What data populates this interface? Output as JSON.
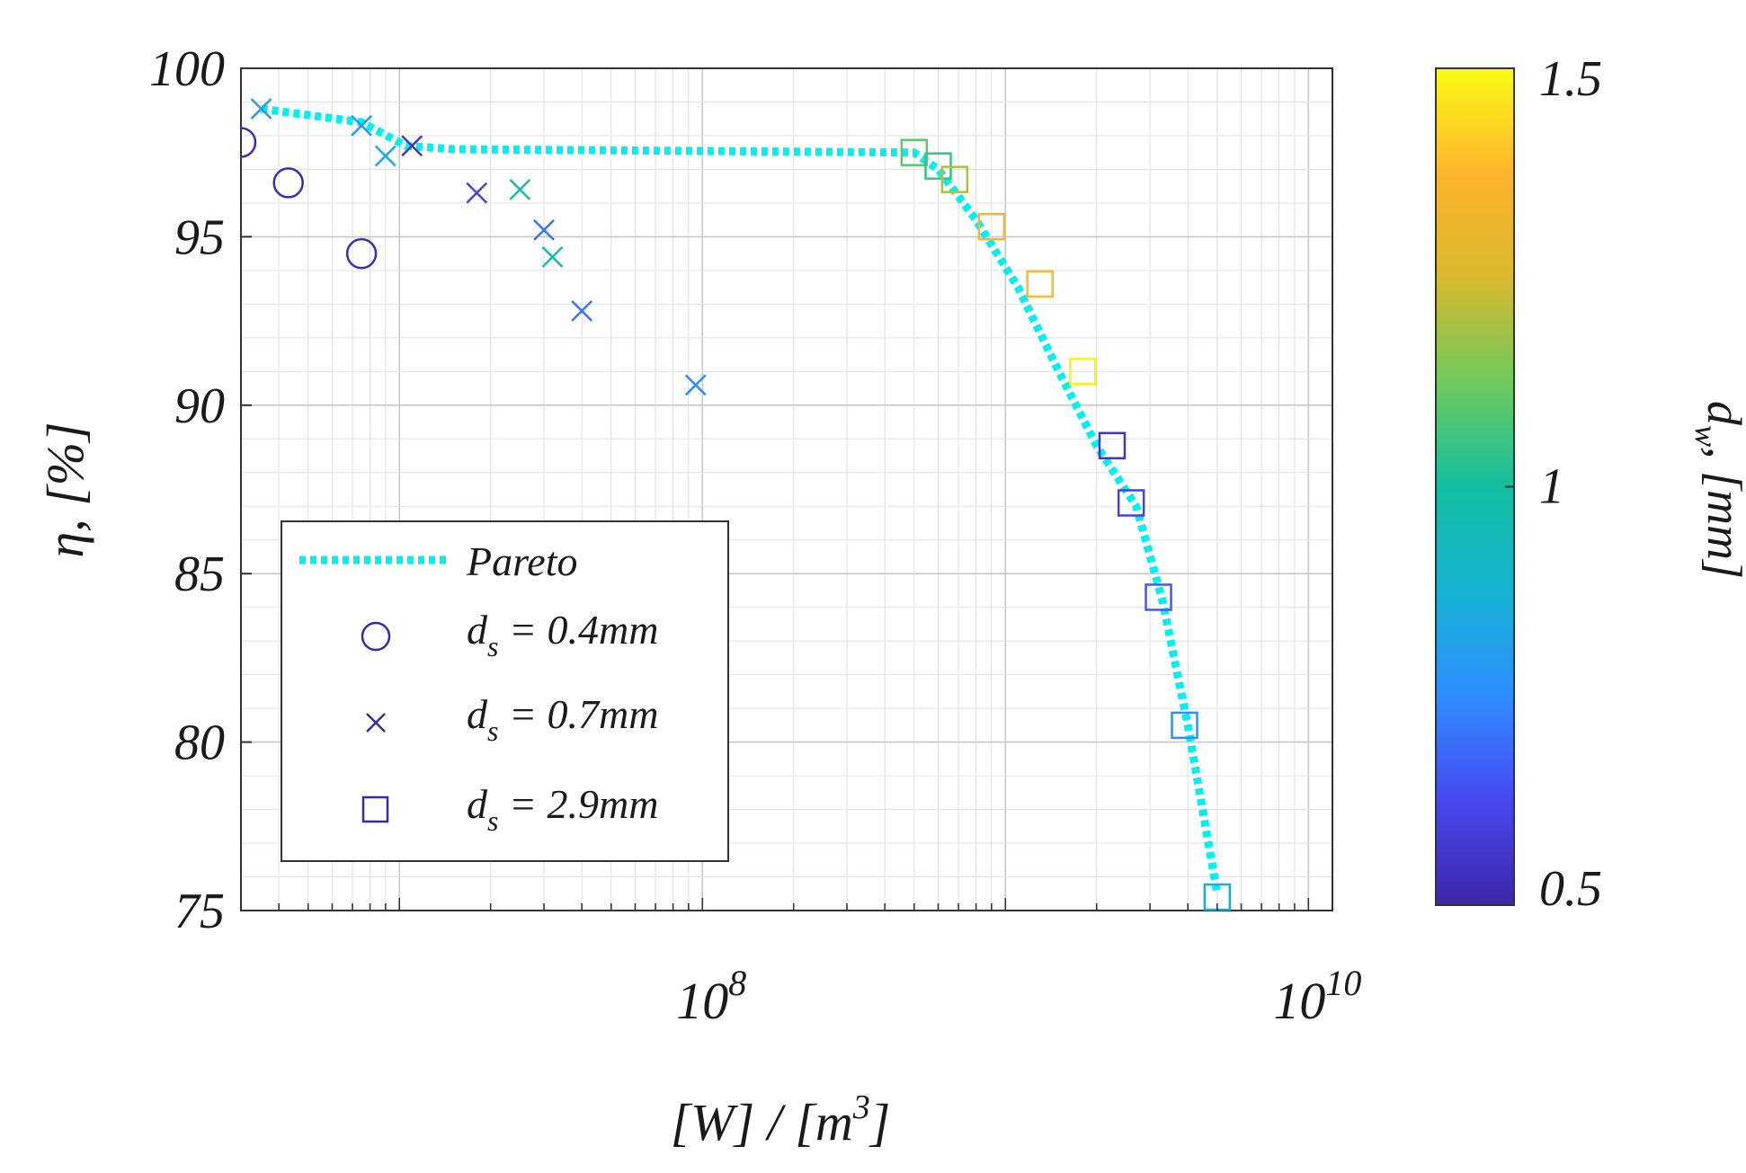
{
  "chart_data": {
    "type": "scatter",
    "title": "",
    "xlabel": "[W] / [m",
    "xlabel_sup": "3",
    "xlabel_close": "]",
    "ylabel": "η, [%]",
    "x_scale": "log",
    "xlim": [
      3000000,
      12000000000
    ],
    "ylim": [
      75,
      100
    ],
    "x_ticks": [
      {
        "value": 100000000,
        "base": "10",
        "exp": "8"
      },
      {
        "value": 10000000000,
        "base": "10",
        "exp": "10"
      }
    ],
    "y_ticks": [
      {
        "value": 75,
        "label": "75"
      },
      {
        "value": 80,
        "label": "80"
      },
      {
        "value": 85,
        "label": "85"
      },
      {
        "value": 90,
        "label": "90"
      },
      {
        "value": 95,
        "label": "95"
      },
      {
        "value": 100,
        "label": "100"
      }
    ],
    "grid": true,
    "colorbar": {
      "label": "d",
      "label_sub": "w",
      "label_rest": ", [mm]",
      "range": [
        0.5,
        1.5
      ],
      "ticks": [
        {
          "value": 0.5,
          "label": "0.5"
        },
        {
          "value": 1.0,
          "label": "1"
        },
        {
          "value": 1.5,
          "label": "1.5"
        }
      ],
      "colormap": "parula",
      "colormap_stops": [
        "#3e26a8",
        "#4748f0",
        "#2f8eff",
        "#15b2d3",
        "#12bfa0",
        "#6fca5d",
        "#d9b92d",
        "#feb42c",
        "#f9fb15"
      ]
    },
    "legend": {
      "placement": "bottom-left",
      "entries": [
        {
          "label": "Pareto",
          "marker": "line",
          "color": "#00f0f0"
        },
        {
          "label": "d",
          "sub": "s",
          "rest": " = 0.4mm",
          "marker": "circle",
          "color": "#3e26a8"
        },
        {
          "label": "d",
          "sub": "s",
          "rest": " = 0.7mm",
          "marker": "x",
          "color": "#3e26a8"
        },
        {
          "label": "d",
          "sub": "s",
          "rest": " = 2.9mm",
          "marker": "square",
          "color": "#3e26a8"
        }
      ]
    },
    "pareto": {
      "name": "Pareto",
      "color": "#00f0f0",
      "x": [
        3500000,
        7500000,
        10500000,
        15000000,
        500000000,
        600000000,
        800000000,
        1100000000,
        1500000000,
        2000000000,
        2700000000,
        3300000000,
        4000000000,
        5000000000
      ],
      "y": [
        98.8,
        98.4,
        97.7,
        97.6,
        97.5,
        97.0,
        95.5,
        93.5,
        91.0,
        88.8,
        87.0,
        84.2,
        80.5,
        75.5
      ]
    },
    "series": [
      {
        "name": "ds = 0.4mm",
        "marker": "circle",
        "x": [
          3000000,
          4300000,
          7500000
        ],
        "y": [
          97.8,
          96.6,
          94.5
        ],
        "dw": [
          0.52,
          0.52,
          0.52
        ]
      },
      {
        "name": "ds = 0.7mm",
        "marker": "x",
        "x": [
          3500000,
          7500000,
          9000000,
          11000000,
          18000000,
          25000000,
          30000000,
          32000000,
          40000000,
          95000000
        ],
        "y": [
          98.8,
          98.3,
          97.4,
          97.7,
          96.3,
          96.4,
          95.2,
          94.4,
          92.8,
          90.6
        ],
        "dw": [
          0.8,
          0.78,
          0.85,
          0.55,
          0.6,
          0.95,
          0.7,
          1.0,
          0.7,
          0.75
        ]
      },
      {
        "name": "ds = 2.9mm",
        "marker": "square",
        "x": [
          500000000,
          600000000,
          680000000,
          900000000,
          1300000000,
          1800000000,
          2250000000,
          2600000000,
          3200000000,
          3900000000,
          5000000000
        ],
        "y": [
          97.5,
          97.1,
          96.7,
          95.3,
          93.6,
          91.0,
          88.8,
          87.1,
          84.3,
          80.5,
          75.4
        ],
        "dw": [
          1.1,
          1.05,
          1.2,
          1.35,
          1.38,
          1.48,
          0.55,
          0.6,
          0.65,
          0.75,
          0.85
        ]
      }
    ]
  }
}
